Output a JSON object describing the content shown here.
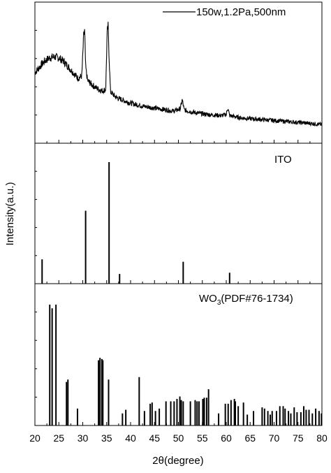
{
  "chart_data": {
    "type": "line",
    "xlabel": "2θ(degree)",
    "ylabel": "Intensity(a.u.)",
    "xlim": [
      20,
      80
    ],
    "x_ticks": [
      20,
      25,
      30,
      35,
      40,
      45,
      50,
      55,
      60,
      65,
      70,
      75,
      80
    ],
    "x_tick_labels": [
      "20",
      "25",
      "30",
      "35",
      "40",
      "45",
      "50",
      "55",
      "60",
      "65",
      "70",
      "75",
      "80"
    ],
    "grid": false,
    "panels": [
      {
        "type": "line",
        "legend": {
          "label": "150w,1.2Pa,500nm",
          "position": "top-right"
        },
        "series": [
          {
            "name": "150w,1.2Pa,500nm",
            "x": [
              20,
              21,
              22,
              23,
              24,
              25,
              26,
              27,
              28,
              29,
              29.8,
              30.2,
              30.4,
              30.6,
              31,
              32,
              33,
              34,
              34.8,
              35.1,
              35.3,
              35.5,
              35.8,
              37,
              40,
              43,
              46,
              49,
              50.4,
              50.8,
              51.2,
              53,
              56,
              59,
              60.0,
              60.3,
              60.7,
              63,
              66,
              69,
              72,
              75,
              78,
              80
            ],
            "y": [
              55,
              60,
              65,
              68,
              69,
              68,
              65,
              60,
              55,
              50,
              52,
              88,
              92,
              60,
              48,
              44,
              41,
              39,
              40,
              90,
              96,
              70,
              38,
              33,
              28,
              25,
              23,
              21,
              23,
              31,
              22,
              20,
              18,
              17,
              18,
              24,
              17,
              15,
              14,
              13,
              12,
              11,
              10,
              9
            ]
          }
        ]
      },
      {
        "type": "bar",
        "title": "ITO",
        "series": [
          {
            "name": "ITO",
            "x": [
              21.5,
              30.6,
              35.5,
              37.7,
              51.0,
              60.7
            ],
            "y": [
              20,
              60,
              100,
              8,
              18,
              9
            ]
          }
        ]
      },
      {
        "type": "bar",
        "title": "WO3(PDF#76-1734)",
        "series": [
          {
            "name": "WO3(PDF#76-1734)",
            "x": [
              23.1,
              23.6,
              24.4,
              26.6,
              26.9,
              28.9,
              33.3,
              33.6,
              34.0,
              34.2,
              35.4,
              38.3,
              39.0,
              41.8,
              42.9,
              44.1,
              44.5,
              45.2,
              46.0,
              47.4,
              48.4,
              49.1,
              49.7,
              50.3,
              50.6,
              51.0,
              52.5,
              53.5,
              53.9,
              54.3,
              55.1,
              55.4,
              55.9,
              56.3,
              58.4,
              59.8,
              60.4,
              61.0,
              61.7,
              61.9,
              62.5,
              63.6,
              64.4,
              65.7,
              67.5,
              68.0,
              68.7,
              69.2,
              69.6,
              70.5,
              71.2,
              71.9,
              72.3,
              73.0,
              73.5,
              74.2,
              74.8,
              75.6,
              76.2,
              76.7,
              77.3,
              78.0,
              78.7,
              79.4,
              79.9
            ],
            "y": [
              100,
              97,
              100,
              36,
              38,
              14,
              54,
              56,
              55,
              54,
              38,
              10,
              13,
              40,
              12,
              18,
              19,
              12,
              14,
              20,
              20,
              20,
              22,
              24,
              21,
              20,
              20,
              21,
              20,
              20,
              22,
              23,
              23,
              30,
              10,
              18,
              18,
              21,
              22,
              20,
              16,
              19,
              9,
              12,
              15,
              14,
              12,
              9,
              12,
              12,
              16,
              16,
              14,
              12,
              10,
              15,
              11,
              11,
              16,
              13,
              13,
              10,
              14,
              12,
              10
            ]
          }
        ]
      }
    ]
  }
}
